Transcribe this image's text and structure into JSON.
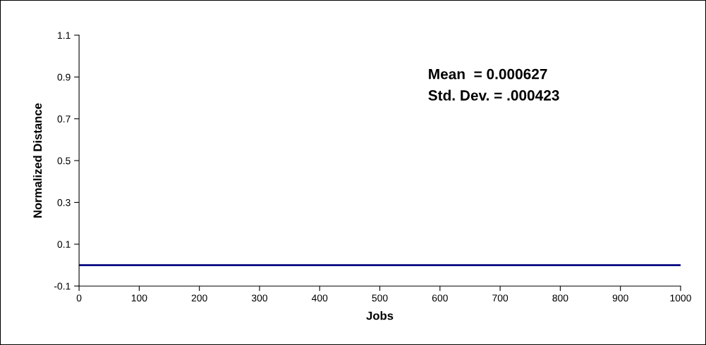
{
  "chart_data": {
    "type": "line",
    "xlabel": "Jobs",
    "ylabel": "Normalized Distance",
    "annotations": [
      "Mean  = 0.000627",
      "Std. Dev. = .000423"
    ],
    "x": [
      0,
      1000
    ],
    "series": [
      {
        "color": "#000080",
        "values": [
          0,
          0
        ]
      }
    ],
    "xlim": [
      0,
      1000
    ],
    "xticks": [
      0,
      100,
      200,
      300,
      400,
      500,
      600,
      700,
      800,
      900,
      1000
    ],
    "ylim": [
      -0.1,
      1.1
    ],
    "yticks": [
      -0.1,
      0.1,
      0.3,
      0.5,
      0.7,
      0.9,
      1.1
    ],
    "grid": false,
    "legend": false,
    "marker": "none",
    "line_style": "solid"
  }
}
